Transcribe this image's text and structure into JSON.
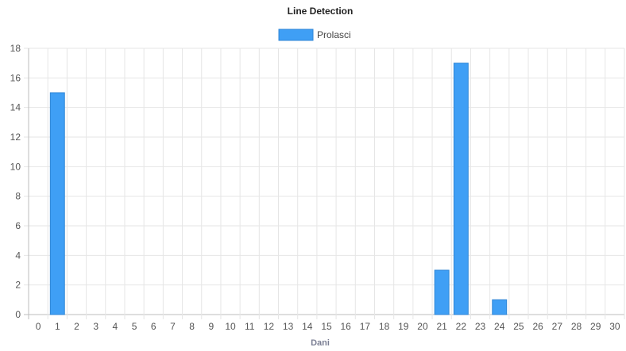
{
  "chart_data": {
    "type": "bar",
    "title": "Line Detection",
    "xlabel": "Dani",
    "ylabel": "",
    "categories": [
      "0",
      "1",
      "2",
      "3",
      "4",
      "5",
      "6",
      "7",
      "8",
      "9",
      "10",
      "11",
      "12",
      "13",
      "14",
      "15",
      "16",
      "17",
      "18",
      "19",
      "20",
      "21",
      "22",
      "23",
      "24",
      "25",
      "26",
      "27",
      "28",
      "29",
      "30"
    ],
    "series": [
      {
        "name": "Prolasci",
        "color": "#3f9ff5",
        "values": [
          0,
          15,
          0,
          0,
          0,
          0,
          0,
          0,
          0,
          0,
          0,
          0,
          0,
          0,
          0,
          0,
          0,
          0,
          0,
          0,
          0,
          3,
          17,
          0,
          1,
          0,
          0,
          0,
          0,
          0,
          0
        ]
      }
    ],
    "ylim": [
      0,
      18
    ],
    "yticks": [
      0,
      2,
      4,
      6,
      8,
      10,
      12,
      14,
      16,
      18
    ],
    "grid": true,
    "legend_position": "top"
  }
}
